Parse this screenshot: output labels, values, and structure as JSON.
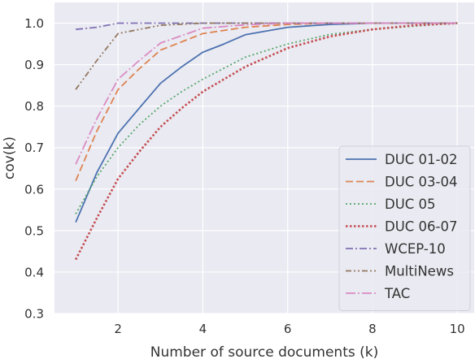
{
  "chart_data": {
    "type": "line",
    "title": "",
    "xlabel": "Number of source documents (k)",
    "ylabel": "cov(k)",
    "xlim": [
      0.5,
      10.4
    ],
    "ylim": [
      0.3,
      1.05
    ],
    "xticks": [
      2,
      4,
      6,
      8,
      10
    ],
    "yticks": [
      0.3,
      0.4,
      0.5,
      0.6,
      0.7,
      0.8,
      0.9,
      1.0
    ],
    "xtick_labels": [
      "2",
      "4",
      "6",
      "8",
      "10"
    ],
    "ytick_labels": [
      "0.3",
      "0.4",
      "0.5",
      "0.6",
      "0.7",
      "0.8",
      "0.9",
      "1.0"
    ],
    "grid": true,
    "background": "#eaeaf2",
    "legend_position": "lower-right",
    "series": [
      {
        "name": "DUC 01-02",
        "color": "#4c72b0",
        "dash": "solid",
        "x": [
          1,
          1.5,
          2,
          2.5,
          3,
          3.5,
          4,
          4.5,
          5,
          6,
          7,
          8,
          9,
          10
        ],
        "y": [
          0.52,
          0.64,
          0.735,
          0.795,
          0.855,
          0.895,
          0.93,
          0.95,
          0.972,
          0.99,
          0.997,
          1.0,
          1.0,
          1.0
        ]
      },
      {
        "name": "DUC 03-04",
        "color": "#dd8452",
        "dash": "dashed",
        "x": [
          1,
          1.5,
          2,
          2.5,
          3,
          3.5,
          4,
          5,
          6,
          7,
          8,
          9,
          10
        ],
        "y": [
          0.62,
          0.74,
          0.84,
          0.89,
          0.935,
          0.955,
          0.975,
          0.99,
          0.997,
          1.0,
          1.0,
          1.0,
          1.0
        ]
      },
      {
        "name": "DUC 05",
        "color": "#55a868",
        "dash": "dotted",
        "x": [
          1,
          1.5,
          2,
          2.5,
          3,
          3.5,
          4,
          5,
          6,
          7,
          8,
          9,
          10
        ],
        "y": [
          0.54,
          0.63,
          0.7,
          0.755,
          0.8,
          0.835,
          0.865,
          0.918,
          0.95,
          0.973,
          0.985,
          0.993,
          1.0
        ]
      },
      {
        "name": "DUC 06-07",
        "color": "#c44e52",
        "dash": "densedot",
        "x": [
          1,
          1.5,
          2,
          2.5,
          3,
          3.5,
          4,
          5,
          6,
          7,
          8,
          9,
          10
        ],
        "y": [
          0.43,
          0.53,
          0.625,
          0.69,
          0.75,
          0.795,
          0.835,
          0.895,
          0.94,
          0.968,
          0.985,
          0.995,
          1.0
        ]
      },
      {
        "name": "WCEP-10",
        "color": "#8172b3",
        "dash": "dashdot",
        "x": [
          1,
          1.5,
          2,
          3,
          4,
          5,
          6,
          7,
          8,
          9,
          10
        ],
        "y": [
          0.985,
          0.99,
          1.0,
          1.0,
          1.0,
          1.0,
          1.0,
          1.0,
          1.0,
          1.0,
          1.0
        ]
      },
      {
        "name": "MultiNews",
        "color": "#937860",
        "dash": "dashdotdot",
        "x": [
          1,
          1.5,
          2,
          2.5,
          3,
          4,
          5,
          6,
          7,
          8,
          9,
          10
        ],
        "y": [
          0.84,
          0.91,
          0.975,
          0.985,
          0.995,
          1.0,
          1.0,
          1.0,
          1.0,
          1.0,
          1.0,
          1.0
        ]
      },
      {
        "name": "TAC",
        "color": "#da8bc3",
        "dash": "longdashdot",
        "x": [
          1,
          1.5,
          2,
          2.5,
          3,
          3.5,
          4,
          5,
          6,
          7,
          8,
          9,
          10
        ],
        "y": [
          0.66,
          0.77,
          0.865,
          0.91,
          0.952,
          0.97,
          0.988,
          0.996,
          1.0,
          1.0,
          1.0,
          1.0,
          1.0
        ]
      }
    ]
  }
}
